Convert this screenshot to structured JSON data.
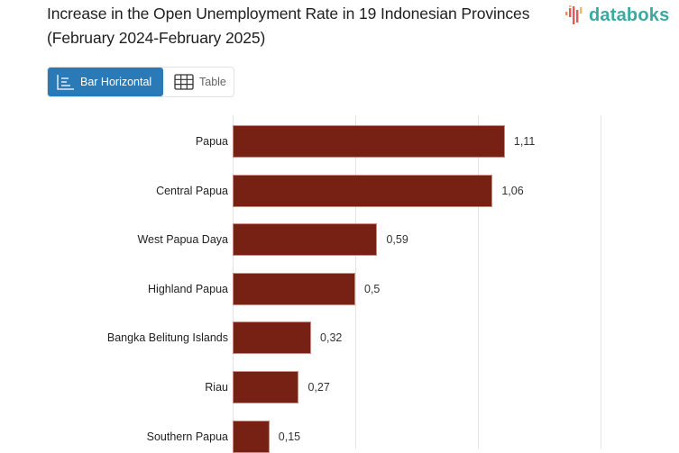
{
  "header": {
    "title": "Increase in the Open Unemployment Rate in 19 Indonesian Provinces (February 2024-February 2025)",
    "logo_text": "databoks",
    "logo_icon": "bar-wave-icon"
  },
  "view_tabs": [
    {
      "label": "Bar Horizontal",
      "icon": "bar-horizontal-icon",
      "active": true
    },
    {
      "label": "Table",
      "icon": "table-grid-icon",
      "active": false
    }
  ],
  "colors": {
    "bar": "#772014",
    "accent_tab": "#2a7ab8",
    "logo_text": "#3aa99f",
    "gridline": "#e4e4e4"
  },
  "chart_data": {
    "type": "bar",
    "orientation": "horizontal",
    "title": "Increase in the Open Unemployment Rate in 19 Indonesian Provinces (February 2024-February 2025)",
    "categories": [
      "Papua",
      "Central Papua",
      "West Papua Daya",
      "Highland Papua",
      "Bangka Belitung Islands",
      "Riau",
      "Southern Papua"
    ],
    "values": [
      1.11,
      1.06,
      0.59,
      0.5,
      0.32,
      0.27,
      0.15
    ],
    "value_labels": [
      "1,11",
      "1,06",
      "0,59",
      "0,5",
      "0,32",
      "0,27",
      "0,15"
    ],
    "xlabel": "",
    "ylabel": "",
    "xlim": [
      0,
      1.5
    ],
    "gridlines_at": [
      0,
      0.5,
      1.0,
      1.5
    ],
    "grid": true,
    "legend": "none"
  }
}
